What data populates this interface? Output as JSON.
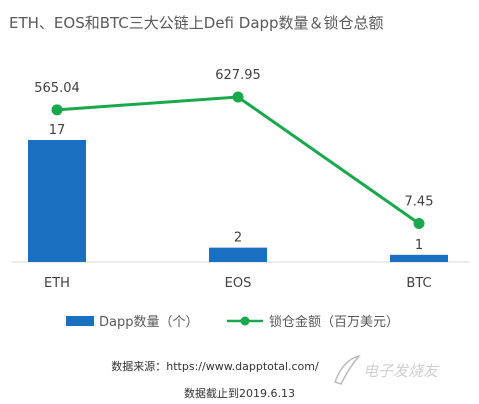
{
  "chart_data": {
    "type": "bar+line",
    "title": "ETH、EOS和BTC三大公链上Defi Dapp数量＆锁仓总额",
    "categories": [
      "ETH",
      "EOS",
      "BTC"
    ],
    "series": [
      {
        "name": "Dapp数量（个）",
        "type": "bar",
        "values": [
          17,
          2,
          1
        ],
        "labels": [
          "17",
          "2",
          "1"
        ],
        "color": "#1a6fc0"
      },
      {
        "name": "锁仓金额（百万美元）",
        "type": "line",
        "values": [
          565.04,
          627.95,
          7.45
        ],
        "labels": [
          "565.04",
          "627.95",
          "7.45"
        ],
        "color": "#19a84c"
      }
    ],
    "legend": "bottom",
    "grid": false
  },
  "footer": {
    "source": "数据来源：https://www.dapptotal.com/",
    "date": "数据截止到2019.6.13"
  },
  "watermark_text": "电子发烧友"
}
